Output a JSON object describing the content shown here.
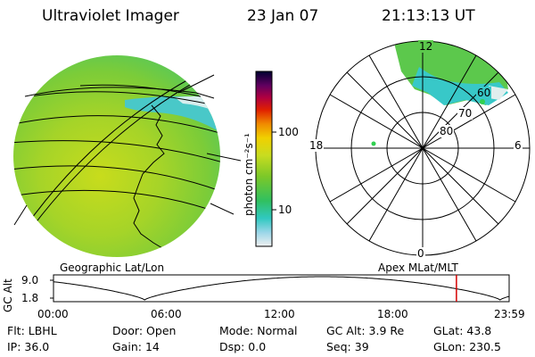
{
  "header": {
    "instrument": "Ultraviolet Imager",
    "date": "23 Jan 07",
    "time": "21:13:13 UT"
  },
  "colorbar": {
    "unit_label": "photon cm⁻²s⁻¹",
    "ticks": [
      "100",
      "10"
    ]
  },
  "polar_plot": {
    "mlt_labels": {
      "top": "12",
      "left": "18",
      "right": "6",
      "bottom": "0"
    },
    "mlat_labels": [
      "60",
      "70",
      "80"
    ],
    "caption": "Apex MLat/MLT"
  },
  "geo_plot": {
    "caption": "Geographic Lat/Lon"
  },
  "altitude_plot": {
    "ylabel": "GC Alt",
    "y_ticks": [
      "9.0",
      "1.8"
    ],
    "x_ticks": [
      "00:00",
      "06:00",
      "12:00",
      "18:00",
      "23:59"
    ],
    "current_time_fraction": 0.8843,
    "marker_color": "#d40000"
  },
  "status": {
    "row1": [
      {
        "label": "Flt:",
        "value": "LBHL"
      },
      {
        "label": "Door:",
        "value": "Open"
      },
      {
        "label": "Mode:",
        "value": "Normal"
      },
      {
        "label": "GC Alt:",
        "value": "3.9 Re"
      },
      {
        "label": "GLat:",
        "value": "43.8"
      }
    ],
    "row2": [
      {
        "label": "IP:",
        "value": "36.0"
      },
      {
        "label": "Gain:",
        "value": "14"
      },
      {
        "label": "Dsp:",
        "value": "0.0"
      },
      {
        "label": "Seq:",
        "value": "39"
      },
      {
        "label": "GLon:",
        "value": "230.5"
      }
    ]
  }
}
